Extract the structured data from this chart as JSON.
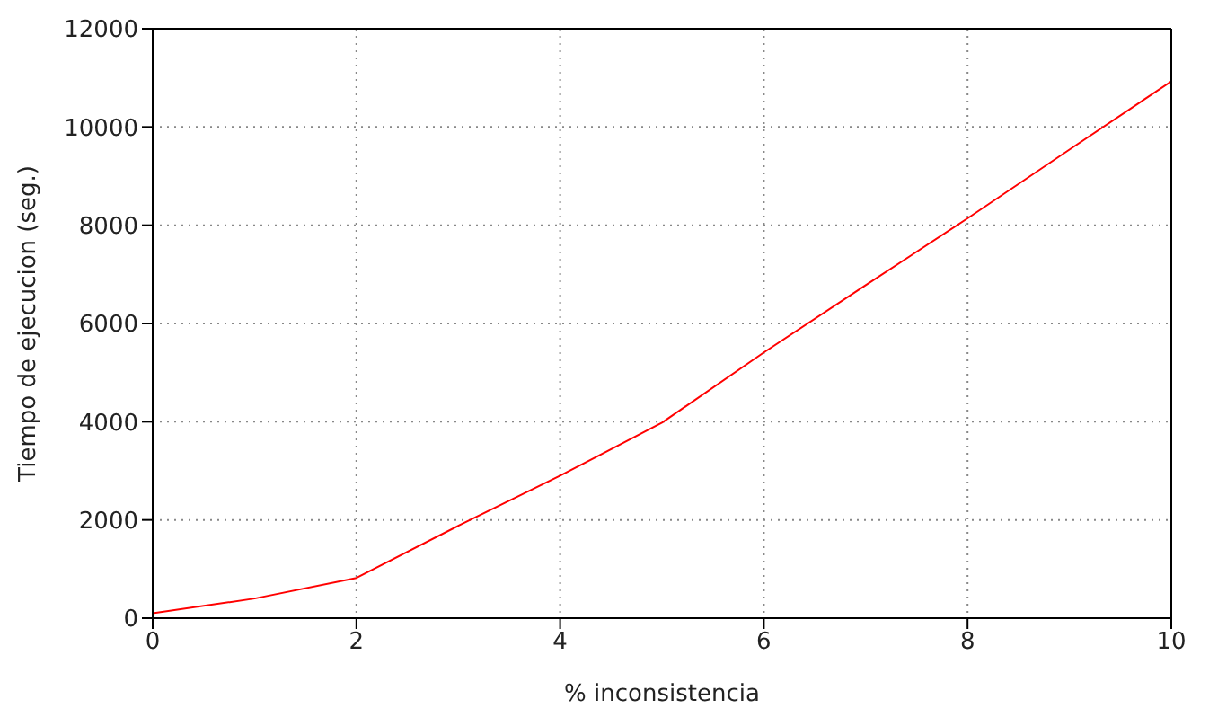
{
  "chart_data": {
    "type": "line",
    "xlabel": "% inconsistencia",
    "ylabel": "Tiempo de ejecucion (seg.)",
    "x": [
      0,
      1,
      2,
      3,
      4,
      5,
      6,
      7,
      8,
      9,
      10
    ],
    "series": [
      {
        "color": "#ff0000",
        "values": [
          100,
          400,
          820,
          1880,
          2900,
          3980,
          5410,
          6780,
          8140,
          9540,
          10930
        ]
      }
    ],
    "xlim": [
      0,
      10
    ],
    "xticks": [
      0,
      2,
      4,
      6,
      8,
      10
    ],
    "ylim": [
      0,
      12000
    ],
    "yticks": [
      0,
      2000,
      4000,
      6000,
      8000,
      10000,
      12000
    ],
    "grid": true,
    "marker": "none",
    "line_style": "solid",
    "legend": false
  }
}
